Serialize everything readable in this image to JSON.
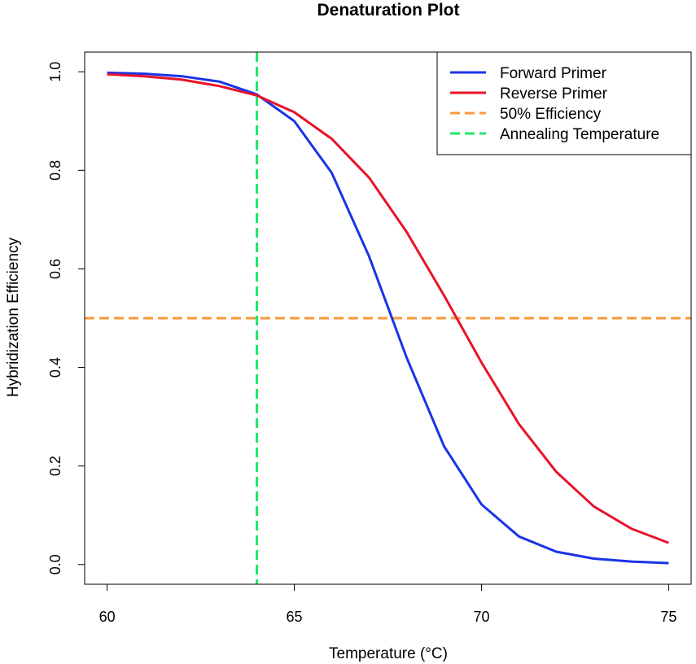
{
  "chart_data": {
    "type": "line",
    "title": "Denaturation Plot",
    "xlabel": "Temperature (°C)",
    "ylabel": "Hybridization Efficiency",
    "xlim": [
      59.4,
      75.6
    ],
    "ylim": [
      -0.04,
      1.04
    ],
    "x_ticks": [
      60,
      65,
      70,
      75
    ],
    "y_ticks": [
      0.0,
      0.2,
      0.4,
      0.6,
      0.8,
      1.0
    ],
    "x_tick_labels": [
      "60",
      "65",
      "70",
      "75"
    ],
    "y_tick_labels": [
      "0.0",
      "0.2",
      "0.4",
      "0.6",
      "0.8",
      "1.0"
    ],
    "x": [
      60,
      61,
      62,
      63,
      64,
      65,
      66,
      67,
      68,
      69,
      70,
      71,
      72,
      73,
      74,
      75
    ],
    "series": [
      {
        "name": "Forward Primer",
        "color": "#1a34e6",
        "style": "solid",
        "values": [
          0.998,
          0.996,
          0.991,
          0.98,
          0.954,
          0.9,
          0.795,
          0.625,
          0.42,
          0.24,
          0.122,
          0.057,
          0.026,
          0.012,
          0.006,
          0.003
        ]
      },
      {
        "name": "Reverse Primer",
        "color": "#e8132b",
        "style": "solid",
        "values": [
          0.995,
          0.991,
          0.984,
          0.971,
          0.952,
          0.918,
          0.864,
          0.785,
          0.675,
          0.546,
          0.41,
          0.285,
          0.188,
          0.118,
          0.073,
          0.044
        ]
      }
    ],
    "reference_lines": [
      {
        "name": "50% Efficiency",
        "orientation": "horizontal",
        "value": 0.5,
        "color": "#f79a3a",
        "style": "dashed"
      },
      {
        "name": "Annealing Temperature",
        "orientation": "vertical",
        "value": 64,
        "color": "#1de86a",
        "style": "dashed"
      }
    ],
    "legend": {
      "position": "top-right",
      "entries": [
        "Forward Primer",
        "Reverse Primer",
        "50% Efficiency",
        "Annealing Temperature"
      ]
    },
    "grid": false
  }
}
